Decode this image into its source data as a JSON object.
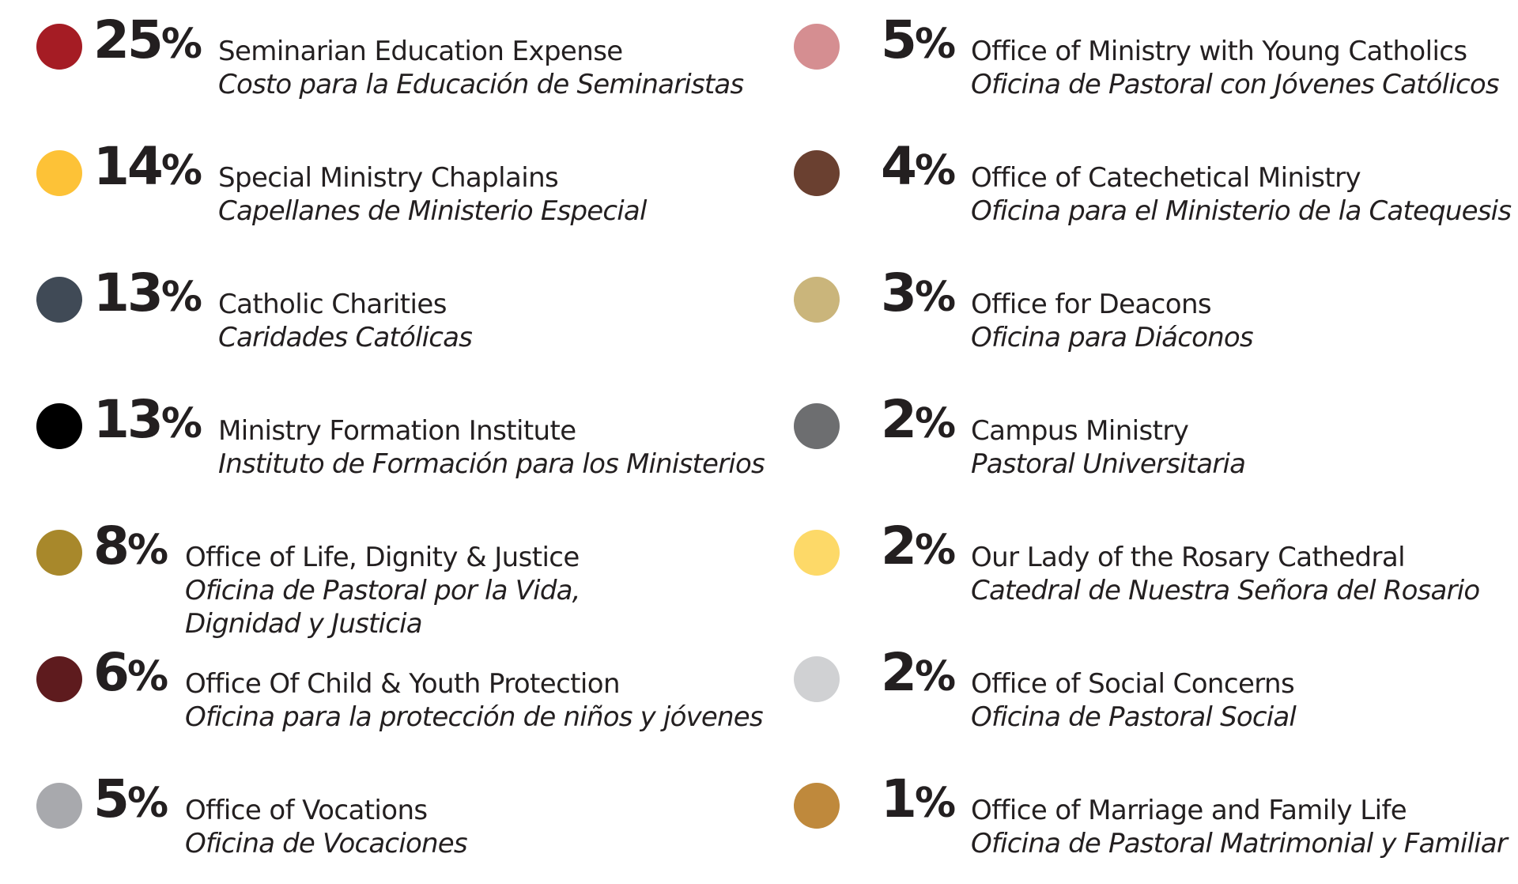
{
  "chart_data": {
    "type": "pie",
    "unit": "%",
    "slices": [
      {
        "value": 25,
        "label": "Seminarian Education Expense",
        "label_es": "Costo para la Educación de Seminaristas",
        "color": "#a51c24"
      },
      {
        "value": 14,
        "label": "Special Ministry Chaplains",
        "label_es": "Capellanes de Ministerio Especial",
        "color": "#fdc237"
      },
      {
        "value": 13,
        "label": "Catholic Charities",
        "label_es": "Caridades Católicas",
        "color": "#404a56"
      },
      {
        "value": 13,
        "label": "Ministry Formation Institute",
        "label_es": "Instituto de Formación para los Ministerios",
        "color": "#000000"
      },
      {
        "value": 8,
        "label": "Office of Life, Dignity & Justice",
        "label_es": "Oficina de Pastoral por la Vida,",
        "label_es_2": "Dignidad y Justicia",
        "color": "#a8882b"
      },
      {
        "value": 6,
        "label": "Office Of Child & Youth Protection",
        "label_es": "Oficina para la protección de niños y jóvenes",
        "color": "#5e1b1e"
      },
      {
        "value": 5,
        "label": "Office of Vocations",
        "label_es": "Oficina de Vocaciones",
        "color": "#a8a9ad"
      },
      {
        "value": 5,
        "label": "Office of Ministry with Young Catholics",
        "label_es": "Oficina de Pastoral con Jóvenes Católicos",
        "color": "#d58e91"
      },
      {
        "value": 4,
        "label": "Office of Catechetical Ministry",
        "label_es": "Oficina para el Ministerio de la Catequesis",
        "color": "#6a4030"
      },
      {
        "value": 3,
        "label": "Office for Deacons",
        "label_es": "Oficina para Diáconos",
        "color": "#cab57b"
      },
      {
        "value": 2,
        "label": "Campus Ministry",
        "label_es": "Pastoral Universitaria",
        "color": "#6d6e70"
      },
      {
        "value": 2,
        "label": "Our Lady of the Rosary Cathedral",
        "label_es": "Catedral de Nuestra Señora del Rosario",
        "color": "#fdd968"
      },
      {
        "value": 2,
        "label": "Office of Social Concerns",
        "label_es": "Oficina de Pastoral Social",
        "color": "#d0d1d3"
      },
      {
        "value": 1,
        "label": "Office of Marriage and Family Life",
        "label_es": "Oficina de Pastoral Matrimonial y Familiar",
        "color": "#bf893c"
      }
    ]
  }
}
